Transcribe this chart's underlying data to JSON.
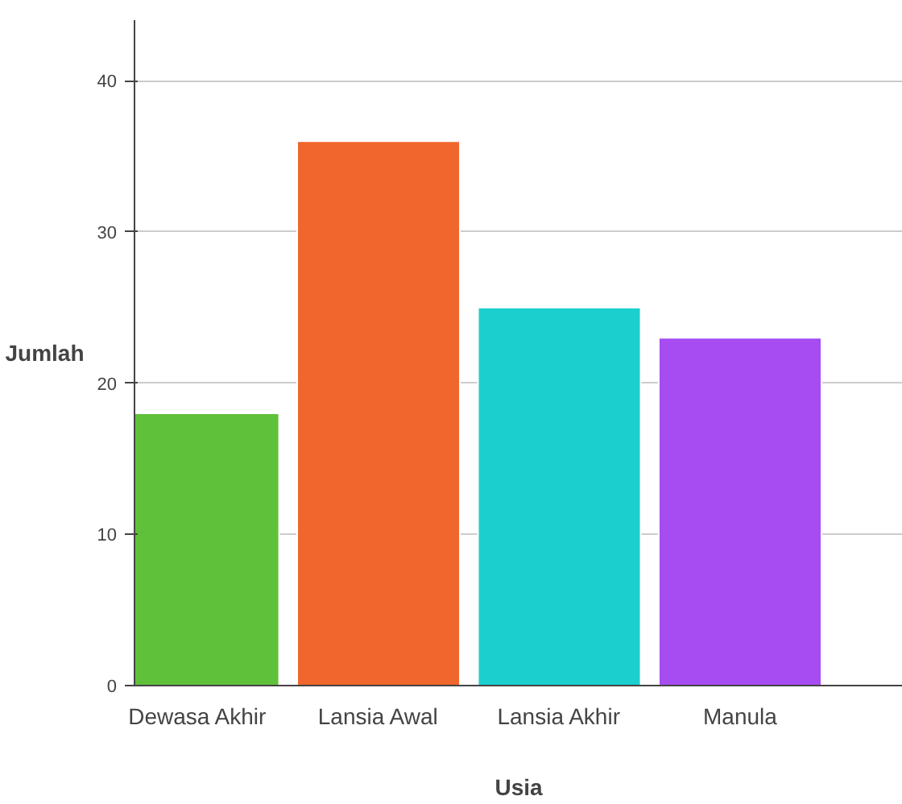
{
  "chart_data": {
    "type": "bar",
    "xlabel": "Usia",
    "ylabel": "Jumlah",
    "categories": [
      "Dewasa Akhir",
      "Lansia Awal",
      "Lansia Akhir",
      "Manula"
    ],
    "values": [
      18,
      36,
      25,
      23
    ],
    "colors": [
      "#5fc13a",
      "#f0662c",
      "#1ccfcf",
      "#a64cf0"
    ],
    "ylim": [
      0,
      44
    ],
    "yticks": [
      0,
      10,
      20,
      30,
      40
    ],
    "grid": "y"
  }
}
